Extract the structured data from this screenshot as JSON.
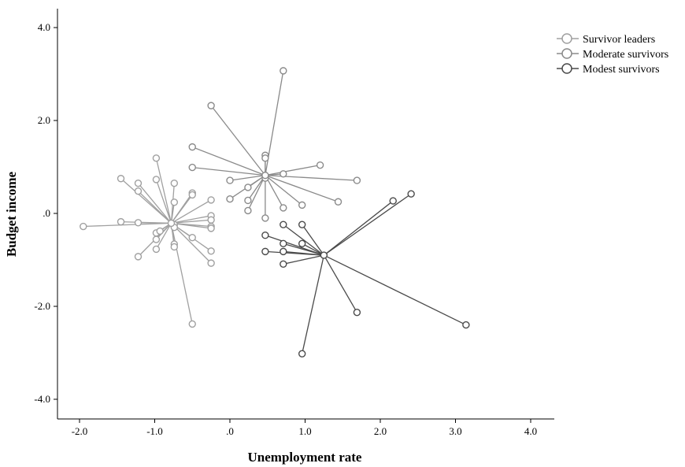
{
  "chart_data": {
    "type": "scatter",
    "xlabel": "Unemployment rate",
    "ylabel": "Budget income",
    "xlim": [
      -2.3,
      4.3
    ],
    "ylim": [
      -4.5,
      4.6
    ],
    "x_ticks": [
      {
        "value": -2.0,
        "label": "-2.0"
      },
      {
        "value": -1.0,
        "label": "-1.0"
      },
      {
        "value": 0.0,
        "label": ".0"
      },
      {
        "value": 1.0,
        "label": "1.0"
      },
      {
        "value": 2.0,
        "label": "2.0"
      },
      {
        "value": 3.0,
        "label": "3.0"
      },
      {
        "value": 4.0,
        "label": "4.0"
      }
    ],
    "y_ticks": [
      {
        "value": 4.0,
        "label": "4.0"
      },
      {
        "value": 2.0,
        "label": "2.0"
      },
      {
        "value": 0.0,
        "label": ".0"
      },
      {
        "value": -2.0,
        "label": "-2.0"
      },
      {
        "value": -4.0,
        "label": "-4.0"
      }
    ],
    "grid": false,
    "legend_position": "top-right",
    "series": [
      {
        "name": "Survivor leaders",
        "color": "#a0a0a0",
        "centroid": [
          -0.78,
          -0.21
        ],
        "points": [
          [
            -1.95,
            -0.28
          ],
          [
            -1.45,
            0.75
          ],
          [
            -1.45,
            -0.18
          ],
          [
            -1.22,
            0.65
          ],
          [
            -1.22,
            0.48
          ],
          [
            -1.22,
            -0.2
          ],
          [
            -1.22,
            -0.93
          ],
          [
            -0.98,
            1.19
          ],
          [
            -0.98,
            0.73
          ],
          [
            -0.98,
            -0.56
          ],
          [
            -0.98,
            -0.77
          ],
          [
            -0.98,
            -0.42
          ],
          [
            -0.93,
            -0.38
          ],
          [
            -0.74,
            0.65
          ],
          [
            -0.74,
            0.24
          ],
          [
            -0.74,
            -0.24
          ],
          [
            -0.74,
            -0.3
          ],
          [
            -0.74,
            -0.66
          ],
          [
            -0.74,
            -0.72
          ],
          [
            -0.5,
            0.44
          ],
          [
            -0.5,
            0.4
          ],
          [
            -0.5,
            -0.52
          ],
          [
            -0.5,
            -2.38
          ],
          [
            -0.25,
            0.29
          ],
          [
            -0.25,
            -0.05
          ],
          [
            -0.25,
            -0.14
          ],
          [
            -0.25,
            -0.28
          ],
          [
            -0.25,
            -0.32
          ],
          [
            -0.25,
            -0.81
          ],
          [
            -0.25,
            -1.07
          ]
        ]
      },
      {
        "name": "Moderate survivors",
        "color": "#8a8a8a",
        "centroid": [
          0.47,
          0.82
        ],
        "points": [
          [
            -0.5,
            1.43
          ],
          [
            -0.5,
            0.99
          ],
          [
            -0.25,
            2.32
          ],
          [
            0.0,
            0.71
          ],
          [
            0.0,
            0.31
          ],
          [
            0.24,
            0.56
          ],
          [
            0.24,
            0.28
          ],
          [
            0.24,
            0.06
          ],
          [
            0.47,
            1.25
          ],
          [
            0.47,
            1.19
          ],
          [
            0.47,
            0.76
          ],
          [
            0.47,
            -0.1
          ],
          [
            0.71,
            3.07
          ],
          [
            0.71,
            0.85
          ],
          [
            0.71,
            0.12
          ],
          [
            0.96,
            0.18
          ],
          [
            1.2,
            1.04
          ],
          [
            1.44,
            0.25
          ],
          [
            1.69,
            0.71
          ]
        ]
      },
      {
        "name": "Modest survivors",
        "color": "#4a4a4a",
        "centroid": [
          1.25,
          -0.9
        ],
        "points": [
          [
            0.47,
            -0.47
          ],
          [
            0.47,
            -0.82
          ],
          [
            0.71,
            -0.24
          ],
          [
            0.71,
            -0.65
          ],
          [
            0.71,
            -0.82
          ],
          [
            0.71,
            -1.09
          ],
          [
            0.96,
            -0.24
          ],
          [
            0.96,
            -0.65
          ],
          [
            0.96,
            -3.02
          ],
          [
            1.69,
            -2.13
          ],
          [
            2.17,
            0.27
          ],
          [
            2.41,
            0.42
          ],
          [
            3.14,
            -2.4
          ]
        ]
      }
    ]
  }
}
